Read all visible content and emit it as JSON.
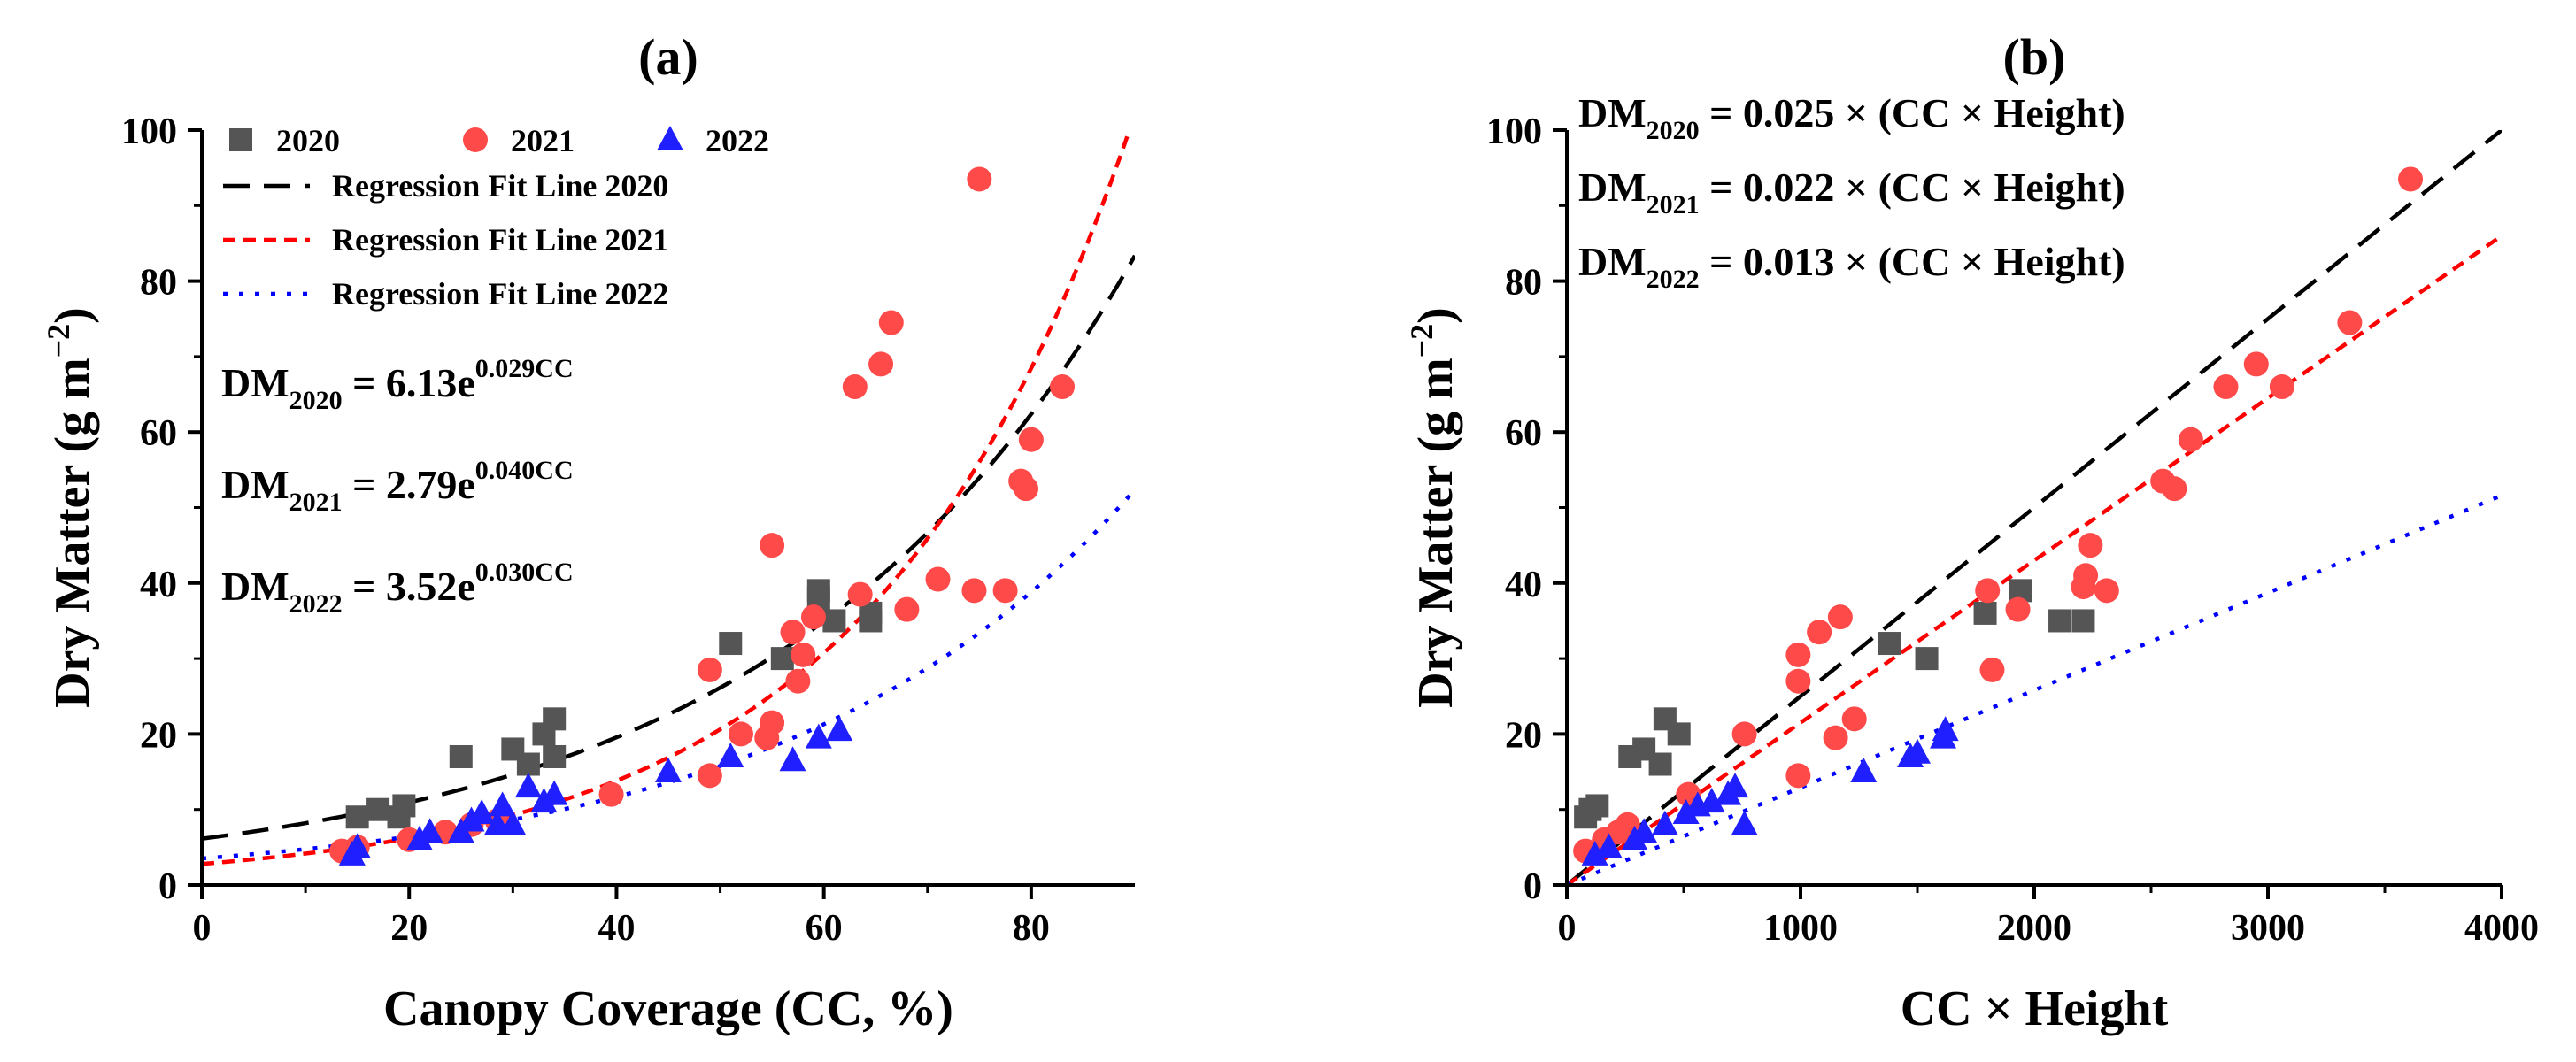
{
  "chart_data": [
    {
      "type": "scatter",
      "panel_label": "(a)",
      "xlabel": "Canopy Coverage (CC, %)",
      "ylabel_main": "Dry Matter (g m",
      "ylabel_sup": "−2",
      "ylabel_end": ")",
      "xlim": [
        0,
        90
      ],
      "ylim": [
        0,
        100
      ],
      "xticks": [
        0,
        20,
        40,
        60,
        80
      ],
      "yticks": [
        0,
        20,
        40,
        60,
        80,
        100
      ],
      "legend": {
        "position": "top-left",
        "markers": [
          {
            "label": "2020",
            "marker": "square",
            "color": "#555555"
          },
          {
            "label": "2021",
            "marker": "circle",
            "color": "#ff4a4a"
          },
          {
            "label": "2022",
            "marker": "triangle",
            "color": "#1f1fff"
          }
        ],
        "lines": [
          {
            "label": "Regression Fit Line 2020",
            "color": "#000000",
            "dash": "long"
          },
          {
            "label": "Regression Fit Line 2021",
            "color": "#ff0000",
            "dash": "short"
          },
          {
            "label": "Regression Fit Line 2022",
            "color": "#0000ff",
            "dash": "dot"
          }
        ]
      },
      "equations": [
        {
          "lhs": "DM",
          "sub": "2020",
          "rhs": " = 6.13e",
          "sup": "0.029CC"
        },
        {
          "lhs": "DM",
          "sub": "2021",
          "rhs": " = 2.79e",
          "sup": "0.040CC"
        },
        {
          "lhs": "DM",
          "sub": "2022",
          "rhs": " = 3.52e",
          "sup": "0.030CC"
        }
      ],
      "fits": [
        {
          "year": "2020",
          "model": "exp",
          "a": 6.13,
          "b": 0.029,
          "color": "#000000",
          "dash": "long"
        },
        {
          "year": "2021",
          "model": "exp",
          "a": 2.79,
          "b": 0.04,
          "color": "#ff0000",
          "dash": "short"
        },
        {
          "year": "2022",
          "model": "exp",
          "a": 3.52,
          "b": 0.03,
          "color": "#0000ff",
          "dash": "dot"
        }
      ],
      "series": [
        {
          "name": "2020",
          "marker": "square",
          "color": "#555555",
          "points": [
            [
              15,
              9
            ],
            [
              17,
              10
            ],
            [
              19,
              9
            ],
            [
              19.5,
              10.5
            ],
            [
              25,
              17
            ],
            [
              30,
              18
            ],
            [
              31.5,
              16
            ],
            [
              33,
              20
            ],
            [
              34,
              22
            ],
            [
              34,
              17
            ],
            [
              51,
              32
            ],
            [
              56,
              30
            ],
            [
              59.5,
              39
            ],
            [
              59.5,
              38
            ],
            [
              61,
              35
            ],
            [
              64.5,
              35
            ],
            [
              64.5,
              36
            ]
          ]
        },
        {
          "name": "2021",
          "marker": "circle",
          "color": "#ff4a4a",
          "points": [
            [
              13.5,
              4.5
            ],
            [
              15,
              5
            ],
            [
              20,
              6
            ],
            [
              23.5,
              7
            ],
            [
              26,
              8
            ],
            [
              28.5,
              8.5
            ],
            [
              39.5,
              12
            ],
            [
              49,
              14.5
            ],
            [
              49,
              28.5
            ],
            [
              52,
              20
            ],
            [
              54.5,
              19.5
            ],
            [
              55,
              21.5
            ],
            [
              55,
              45
            ],
            [
              57,
              33.5
            ],
            [
              57.5,
              27
            ],
            [
              58,
              30.5
            ],
            [
              59,
              35.5
            ],
            [
              63,
              66
            ],
            [
              63.5,
              38.5
            ],
            [
              65.5,
              69
            ],
            [
              66.5,
              74.5
            ],
            [
              68,
              36.5
            ],
            [
              71,
              40.5
            ],
            [
              74.5,
              39
            ],
            [
              75,
              93.5
            ],
            [
              77.5,
              39
            ],
            [
              79,
              53.5
            ],
            [
              79.5,
              52.5
            ],
            [
              80,
              59
            ],
            [
              83,
              66
            ]
          ]
        },
        {
          "name": "2022",
          "marker": "triangle",
          "color": "#1f1fff",
          "points": [
            [
              14.5,
              4
            ],
            [
              15,
              5
            ],
            [
              21,
              6
            ],
            [
              22,
              7
            ],
            [
              25,
              7
            ],
            [
              26,
              8.5
            ],
            [
              27,
              9.5
            ],
            [
              28.5,
              8
            ],
            [
              29,
              10.5
            ],
            [
              30,
              8
            ],
            [
              31.5,
              13
            ],
            [
              33,
              11
            ],
            [
              34,
              12
            ],
            [
              45,
              15
            ],
            [
              51,
              17
            ],
            [
              57,
              16.5
            ],
            [
              59.5,
              19.5
            ],
            [
              61.5,
              20.5
            ]
          ]
        }
      ]
    },
    {
      "type": "scatter",
      "panel_label": "(b)",
      "xlabel": "CC × Height",
      "ylabel_main": "Dry Matter (g m",
      "ylabel_sup": "−2",
      "ylabel_end": ")",
      "xlim": [
        0,
        4000
      ],
      "ylim": [
        0,
        100
      ],
      "xticks": [
        0,
        1000,
        2000,
        3000,
        4000
      ],
      "yticks": [
        0,
        20,
        40,
        60,
        80,
        100
      ],
      "equations": [
        {
          "lhs": "DM",
          "sub": "2020",
          "rhs": " = 0.025 × (CC × Height)"
        },
        {
          "lhs": "DM",
          "sub": "2021",
          "rhs": " = 0.022 × (CC × Height)"
        },
        {
          "lhs": "DM",
          "sub": "2022",
          "rhs": " = 0.013 × (CC × Height)"
        }
      ],
      "fits": [
        {
          "year": "2020",
          "model": "linear",
          "k": 0.025,
          "color": "#000000",
          "dash": "long"
        },
        {
          "year": "2021",
          "model": "linear",
          "k": 0.0215,
          "color": "#ff0000",
          "dash": "short"
        },
        {
          "year": "2022",
          "model": "linear",
          "k": 0.0129,
          "color": "#0000ff",
          "dash": "dot"
        }
      ],
      "series": [
        {
          "name": "2020",
          "marker": "square",
          "color": "#555555",
          "points": [
            [
              80,
              9
            ],
            [
              100,
              10
            ],
            [
              130,
              10.5
            ],
            [
              270,
              17
            ],
            [
              330,
              18
            ],
            [
              400,
              16
            ],
            [
              420,
              22
            ],
            [
              480,
              20
            ],
            [
              1380,
              32
            ],
            [
              1540,
              30
            ],
            [
              1790,
              36
            ],
            [
              1940,
              39
            ],
            [
              2110,
              35
            ],
            [
              2210,
              35
            ]
          ]
        },
        {
          "name": "2021",
          "marker": "circle",
          "color": "#ff4a4a",
          "points": [
            [
              80,
              4.5
            ],
            [
              160,
              6
            ],
            [
              220,
              7
            ],
            [
              260,
              8
            ],
            [
              520,
              12
            ],
            [
              760,
              20
            ],
            [
              990,
              14.5
            ],
            [
              990,
              27
            ],
            [
              990,
              30.5
            ],
            [
              1080,
              33.5
            ],
            [
              1150,
              19.5
            ],
            [
              1170,
              35.5
            ],
            [
              1230,
              22
            ],
            [
              1800,
              39
            ],
            [
              1820,
              28.5
            ],
            [
              1930,
              36.5
            ],
            [
              2210,
              39.5
            ],
            [
              2220,
              41
            ],
            [
              2240,
              45
            ],
            [
              2310,
              39
            ],
            [
              2550,
              53.5
            ],
            [
              2600,
              52.5
            ],
            [
              2670,
              59
            ],
            [
              2820,
              66
            ],
            [
              2950,
              69
            ],
            [
              3060,
              66
            ],
            [
              3350,
              74.5
            ],
            [
              3610,
              93.5
            ]
          ]
        },
        {
          "name": "2022",
          "marker": "triangle",
          "color": "#1f1fff",
          "points": [
            [
              120,
              4
            ],
            [
              180,
              5
            ],
            [
              290,
              6
            ],
            [
              330,
              7
            ],
            [
              420,
              8
            ],
            [
              510,
              9.5
            ],
            [
              560,
              10.5
            ],
            [
              620,
              11
            ],
            [
              690,
              12
            ],
            [
              720,
              13
            ],
            [
              760,
              8
            ],
            [
              1270,
              15
            ],
            [
              1470,
              17
            ],
            [
              1500,
              17.5
            ],
            [
              1610,
              19.5
            ],
            [
              1620,
              20.5
            ]
          ]
        }
      ]
    }
  ]
}
